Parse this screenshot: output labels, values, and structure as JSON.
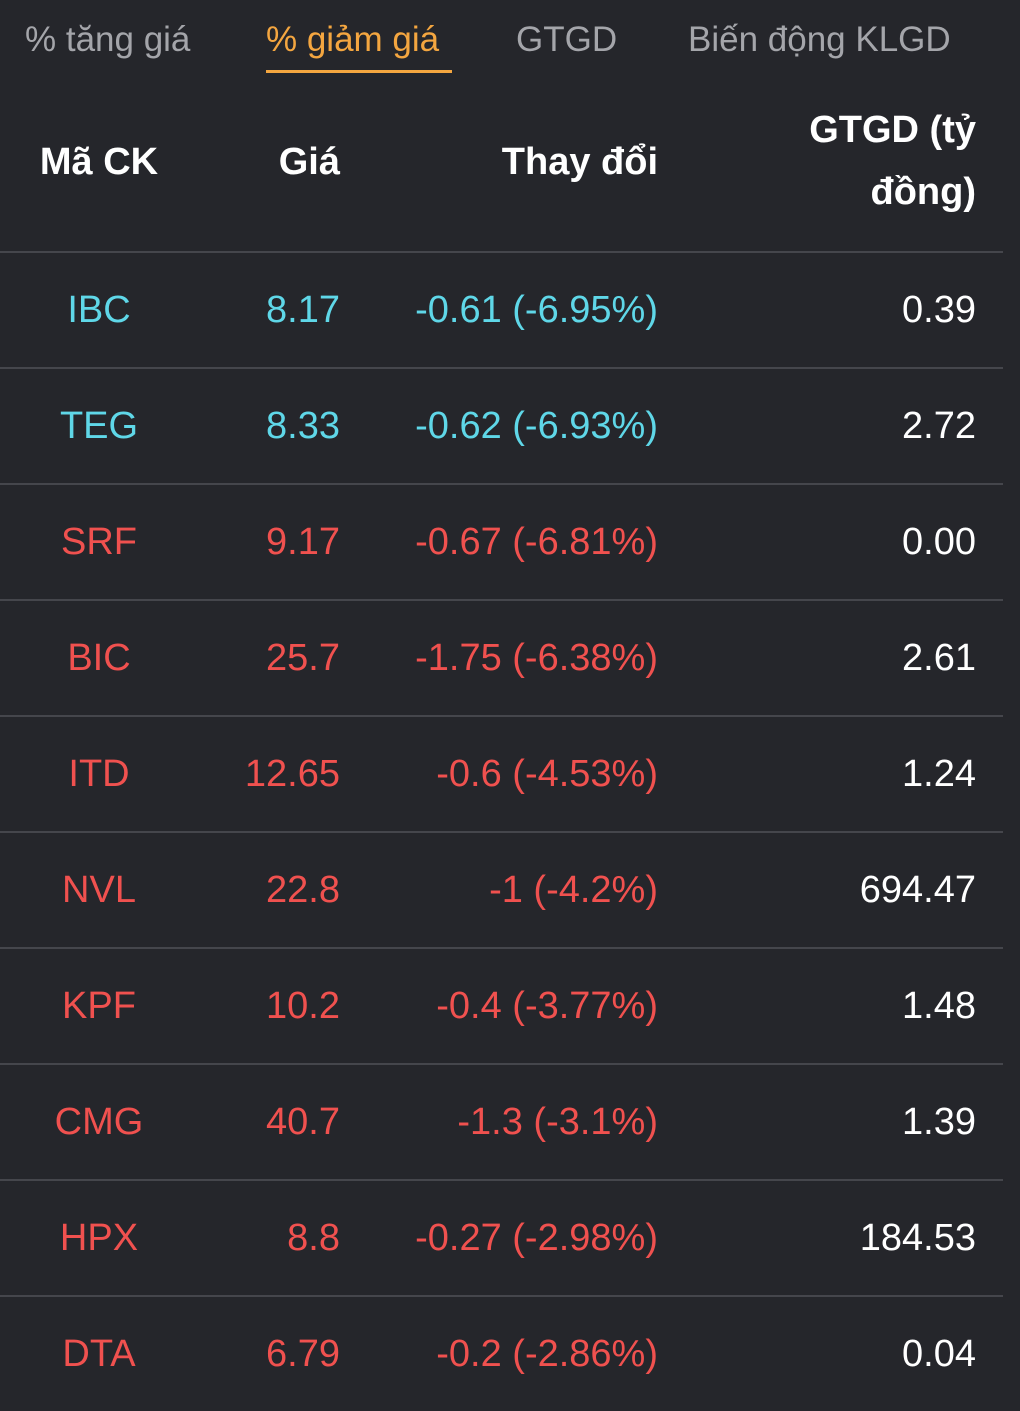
{
  "colors": {
    "background": "#25262b",
    "active_tab": "#f4a640",
    "inactive_tab": "#a4a5aa",
    "floor": "#5fd7e8",
    "down": "#f0514f",
    "divider": "#45464c",
    "text": "#ffffff"
  },
  "tabs": [
    {
      "label": "% tăng giá",
      "active": false
    },
    {
      "label": "% giảm giá",
      "active": true
    },
    {
      "label": "GTGD",
      "active": false
    },
    {
      "label": "Biến động KLGD",
      "active": false
    }
  ],
  "table": {
    "headers": {
      "symbol": "Mã CK",
      "price": "Giá",
      "change": "Thay đổi",
      "value_line1": "GTGD (tỷ",
      "value_line2": "đồng)"
    },
    "rows": [
      {
        "symbol": "IBC",
        "price": "8.17",
        "change": "-0.61 (-6.95%)",
        "value": "0.39",
        "status": "floor"
      },
      {
        "symbol": "TEG",
        "price": "8.33",
        "change": "-0.62 (-6.93%)",
        "value": "2.72",
        "status": "floor"
      },
      {
        "symbol": "SRF",
        "price": "9.17",
        "change": "-0.67 (-6.81%)",
        "value": "0.00",
        "status": "down"
      },
      {
        "symbol": "BIC",
        "price": "25.7",
        "change": "-1.75 (-6.38%)",
        "value": "2.61",
        "status": "down"
      },
      {
        "symbol": "ITD",
        "price": "12.65",
        "change": "-0.6 (-4.53%)",
        "value": "1.24",
        "status": "down"
      },
      {
        "symbol": "NVL",
        "price": "22.8",
        "change": "-1 (-4.2%)",
        "value": "694.47",
        "status": "down"
      },
      {
        "symbol": "KPF",
        "price": "10.2",
        "change": "-0.4 (-3.77%)",
        "value": "1.48",
        "status": "down"
      },
      {
        "symbol": "CMG",
        "price": "40.7",
        "change": "-1.3 (-3.1%)",
        "value": "1.39",
        "status": "down"
      },
      {
        "symbol": "HPX",
        "price": "8.8",
        "change": "-0.27 (-2.98%)",
        "value": "184.53",
        "status": "down"
      },
      {
        "symbol": "DTA",
        "price": "6.79",
        "change": "-0.2 (-2.86%)",
        "value": "0.04",
        "status": "down"
      }
    ]
  }
}
